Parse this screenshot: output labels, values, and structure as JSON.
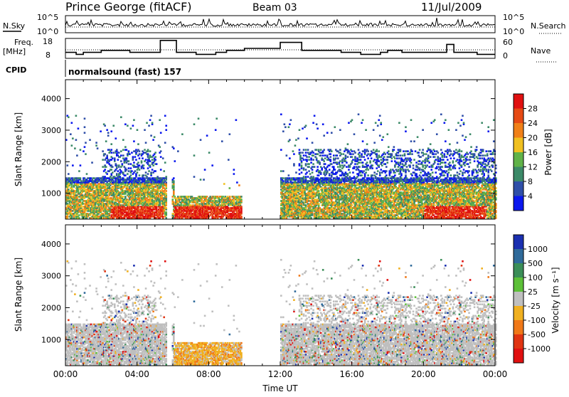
{
  "header": {
    "station": "Prince George (fitACF)",
    "beam": "Beam 03",
    "date": "11/Jul/2009"
  },
  "noise_panel": {
    "left_label": "N.Sky",
    "left_ticks": [
      "10^5",
      "10^0"
    ],
    "right_ticks": [
      "10^5",
      "10^0"
    ],
    "right_label": "N.Search"
  },
  "freq_panel": {
    "left_label_1": "Freq.",
    "left_label_2": "[MHz]",
    "left_ticks": [
      "18",
      "8"
    ],
    "right_ticks": [
      "60",
      "0"
    ],
    "right_label": "Nave"
  },
  "cpid_panel": {
    "label": "CPID",
    "program": "normalsound (fast) 157"
  },
  "power_panel": {
    "ylabel": "Slant Range [km]",
    "yticks": [
      "1000",
      "2000",
      "3000",
      "4000"
    ],
    "colorbar_label": "Power [dB]",
    "colorbar_ticks": [
      "4",
      "8",
      "12",
      "16",
      "20",
      "24",
      "28"
    ],
    "colorbar_colors": [
      "#0b18ee",
      "#2f4fa8",
      "#3c8a68",
      "#60b248",
      "#f0c020",
      "#f08018",
      "#e64a14",
      "#e01010"
    ]
  },
  "velocity_panel": {
    "ylabel": "Slant Range [km]",
    "yticks": [
      "1000",
      "2000",
      "3000",
      "4000"
    ],
    "colorbar_label": "Velocity [m s⁻¹]",
    "colorbar_ticks": [
      "1000",
      "500",
      "100",
      "25",
      "-25",
      "-100",
      "-500",
      "-1000"
    ],
    "colorbar_colors": [
      "#1a2fb0",
      "#2f6a9a",
      "#3b8e58",
      "#5dc038",
      "#bfbfbf",
      "#f0b020",
      "#f07818",
      "#e03412",
      "#e01010"
    ]
  },
  "xaxis": {
    "label": "Time UT",
    "ticks": [
      "00:00",
      "04:00",
      "08:00",
      "12:00",
      "16:00",
      "20:00",
      "00:00"
    ]
  },
  "chart_data": {
    "type": "heatmap",
    "x_range_hours": [
      0,
      24
    ],
    "y_range_km": [
      180,
      4600
    ],
    "freq_ylim": [
      8,
      18
    ],
    "freq_step": [
      {
        "t": 0,
        "f": 11
      },
      {
        "t": 0.6,
        "f": 10
      },
      {
        "t": 1.0,
        "f": 11
      },
      {
        "t": 2.0,
        "f": 12
      },
      {
        "t": 3.6,
        "f": 11
      },
      {
        "t": 4.5,
        "f": 11
      },
      {
        "t": 5.3,
        "f": 17
      },
      {
        "t": 6.2,
        "f": 11
      },
      {
        "t": 7.3,
        "f": 10
      },
      {
        "t": 8.4,
        "f": 11
      },
      {
        "t": 9.0,
        "f": 12
      },
      {
        "t": 10.0,
        "f": 13
      },
      {
        "t": 11.8,
        "f": 13
      },
      {
        "t": 12.0,
        "f": 16
      },
      {
        "t": 13.0,
        "f": 16
      },
      {
        "t": 13.2,
        "f": 12
      },
      {
        "t": 15.4,
        "f": 11
      },
      {
        "t": 16.5,
        "f": 10
      },
      {
        "t": 17.6,
        "f": 11
      },
      {
        "t": 18.0,
        "f": 12
      },
      {
        "t": 18.8,
        "f": 11
      },
      {
        "t": 21.3,
        "f": 15
      },
      {
        "t": 21.7,
        "f": 11
      },
      {
        "t": 23.0,
        "f": 10
      },
      {
        "t": 24,
        "f": 10
      }
    ],
    "power_ylim_db": [
      0,
      32
    ],
    "velocity_range_ms": [
      -1000,
      1000
    ],
    "data_gaps_hours": [
      [
        5.6,
        5.9
      ],
      [
        9.8,
        12.0
      ]
    ]
  }
}
